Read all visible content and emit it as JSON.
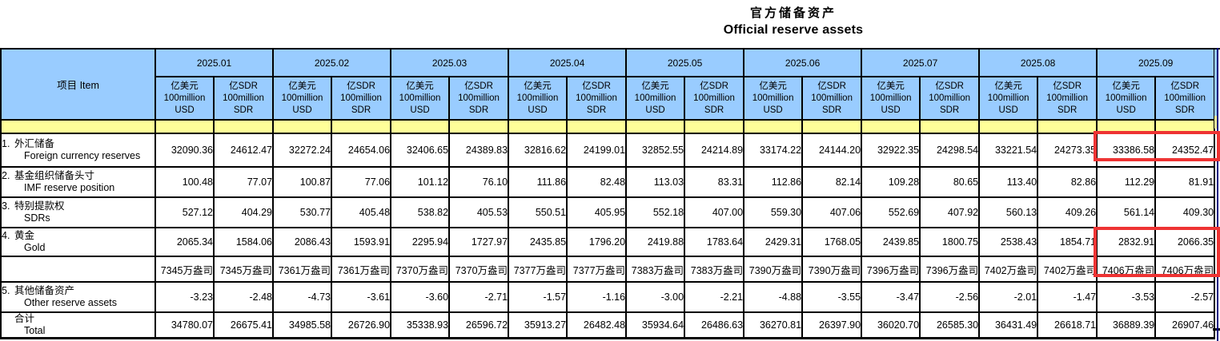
{
  "page": {
    "title_zh": "官方储备资产",
    "title_en": "Official reserve assets"
  },
  "table": {
    "item_header": "项目  Item",
    "months": [
      "2025.01",
      "2025.02",
      "2025.03",
      "2025.04",
      "2025.05",
      "2025.06",
      "2025.07",
      "2025.08",
      "2025.09"
    ],
    "unit_usd": {
      "zh": "亿美元",
      "mid": "100million",
      "en": "USD"
    },
    "unit_sdr": {
      "zh": "亿SDR",
      "mid": "100million",
      "en": "SDR"
    },
    "rows": [
      {
        "num": "1.",
        "zh": "外汇储备",
        "en": "Foreign currency reserves",
        "values": [
          "32090.36",
          "24612.47",
          "32272.24",
          "24654.06",
          "32406.65",
          "24389.83",
          "32816.62",
          "24199.01",
          "32852.55",
          "24214.89",
          "33174.22",
          "24144.20",
          "32922.35",
          "24298.54",
          "33221.54",
          "24273.35",
          "33386.58",
          "24352.47"
        ]
      },
      {
        "num": "2.",
        "zh": "基金组织储备头寸",
        "en": "IMF reserve position",
        "values": [
          "100.48",
          "77.07",
          "100.87",
          "77.06",
          "101.12",
          "76.10",
          "111.86",
          "82.48",
          "113.03",
          "83.31",
          "112.86",
          "82.14",
          "109.28",
          "80.65",
          "113.40",
          "82.86",
          "112.29",
          "81.91"
        ]
      },
      {
        "num": "3.",
        "zh": "特别提款权",
        "en": "SDRs",
        "values": [
          "527.12",
          "404.29",
          "530.77",
          "405.48",
          "538.82",
          "405.53",
          "550.51",
          "405.95",
          "552.18",
          "407.00",
          "559.30",
          "407.06",
          "552.69",
          "407.92",
          "560.13",
          "409.26",
          "561.14",
          "409.30"
        ]
      },
      {
        "num": "4.",
        "zh": "黄金",
        "en": "Gold",
        "values": [
          "2065.34",
          "1584.06",
          "2086.43",
          "1593.91",
          "2295.94",
          "1727.97",
          "2435.85",
          "1796.20",
          "2419.88",
          "1783.64",
          "2429.31",
          "1768.05",
          "2439.85",
          "1800.75",
          "2538.43",
          "1854.71",
          "2832.91",
          "2066.35"
        ]
      },
      {
        "num": "",
        "zh": "",
        "en": "",
        "values": [
          "7345万盎司",
          "7345万盎司",
          "7361万盎司",
          "7361万盎司",
          "7370万盎司",
          "7370万盎司",
          "7377万盎司",
          "7377万盎司",
          "7383万盎司",
          "7383万盎司",
          "7390万盎司",
          "7390万盎司",
          "7396万盎司",
          "7396万盎司",
          "7402万盎司",
          "7402万盎司",
          "7406万盎司",
          "7406万盎司"
        ]
      },
      {
        "num": "5.",
        "zh": "其他储备资产",
        "en": "Other reserve assets",
        "values": [
          "-3.23",
          "-2.48",
          "-4.73",
          "-3.61",
          "-3.60",
          "-2.71",
          "-1.57",
          "-1.16",
          "-3.00",
          "-2.21",
          "-4.88",
          "-3.55",
          "-3.47",
          "-2.56",
          "-2.01",
          "-1.47",
          "-3.53",
          "-2.57"
        ]
      },
      {
        "num": "",
        "zh": "合计",
        "en": "Total",
        "values": [
          "34780.07",
          "26675.41",
          "34985.58",
          "26726.90",
          "35338.93",
          "26596.72",
          "35913.27",
          "26482.48",
          "35934.64",
          "26486.63",
          "36270.81",
          "26397.90",
          "36020.70",
          "26585.30",
          "36431.49",
          "26618.71",
          "36889.39",
          "26907.46"
        ]
      }
    ],
    "highlights": [
      {
        "name": "fx-reserves-2025-09",
        "note": "2025.09 foreign currency reserves highlighted"
      },
      {
        "name": "gold-2025-09",
        "note": "2025.09 gold value and ounces highlighted"
      }
    ],
    "colors": {
      "header_blue": "#99CCFF",
      "band_yellow": "#FFFF99",
      "highlight_red": "#EE3333",
      "pane_line_navy": "#000080",
      "border_black": "#000000"
    }
  }
}
